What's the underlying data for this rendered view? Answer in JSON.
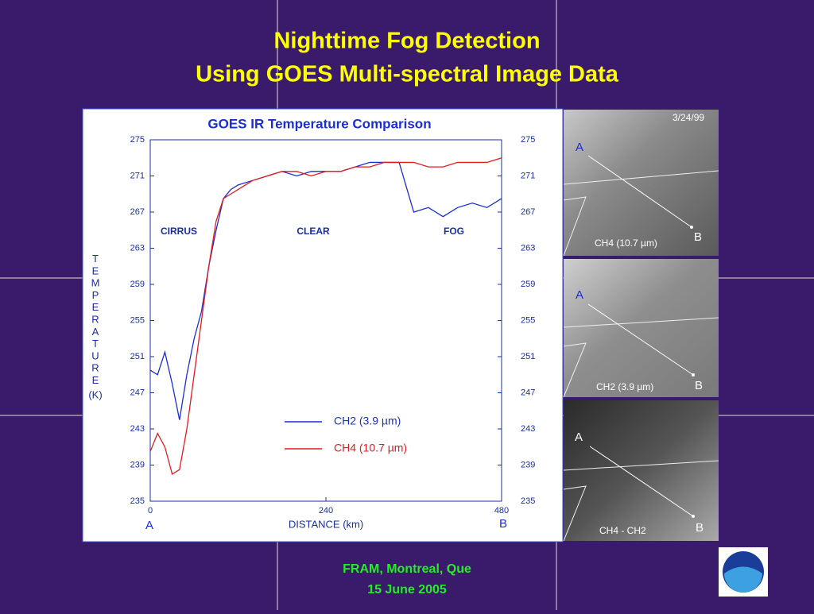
{
  "slide": {
    "title_line1": "Nighttime Fog Detection",
    "title_line2": "Using GOES Multi-spectral Image Data",
    "footer_line1": "FRAM, Montreal, Que",
    "footer_line2": "15 June 2005"
  },
  "chart_data": {
    "type": "line",
    "title": "GOES IR Temperature Comparison",
    "x_label": "DISTANCE (km)",
    "y_label": "TEMPERATURE",
    "y_unit": "(K)",
    "annotations": [
      "CIRRUS",
      "CLEAR",
      "FOG",
      "A",
      "B"
    ],
    "x": [
      0,
      10,
      20,
      30,
      40,
      50,
      60,
      70,
      80,
      90,
      100,
      110,
      120,
      140,
      160,
      180,
      200,
      220,
      240,
      260,
      280,
      300,
      320,
      340,
      360,
      380,
      400,
      420,
      440,
      460,
      480
    ],
    "series": [
      {
        "name": "CH2 (3.9 µm)",
        "color": "#1a2fd0",
        "values": [
          249.5,
          249,
          251.5,
          248,
          244,
          249,
          253,
          256,
          261,
          265,
          268.5,
          269.5,
          270,
          270.5,
          271,
          271.5,
          271,
          271.5,
          271.5,
          271.5,
          272,
          272.5,
          272.5,
          272.5,
          267,
          267.5,
          266.5,
          267.5,
          268,
          267.5,
          268.5
        ]
      },
      {
        "name": "CH4 (10.7 µm)",
        "color": "#e41b1b",
        "values": [
          240.5,
          242.5,
          241,
          238,
          238.5,
          243,
          249,
          255,
          261,
          266,
          268.5,
          269,
          269.5,
          270.5,
          271,
          271.5,
          271.5,
          271,
          271.5,
          271.5,
          272,
          272,
          272.5,
          272.5,
          272.5,
          272,
          272,
          272.5,
          272.5,
          272.5,
          273
        ]
      }
    ],
    "xlim": [
      0,
      480
    ],
    "xticks": [
      0,
      240,
      480
    ],
    "ylim": [
      235,
      275
    ],
    "yticks": [
      235,
      239,
      243,
      247,
      251,
      255,
      259,
      263,
      267,
      271,
      275
    ]
  },
  "images": [
    {
      "date": "3/24/99",
      "point_a": "A",
      "point_b": "B",
      "caption": "CH4 (10.7 µm)"
    },
    {
      "point_a": "A",
      "point_b": "B",
      "caption": "CH2 (3.9 µm)"
    },
    {
      "point_a": "A",
      "point_b": "B",
      "caption": "CH4 - CH2"
    }
  ]
}
